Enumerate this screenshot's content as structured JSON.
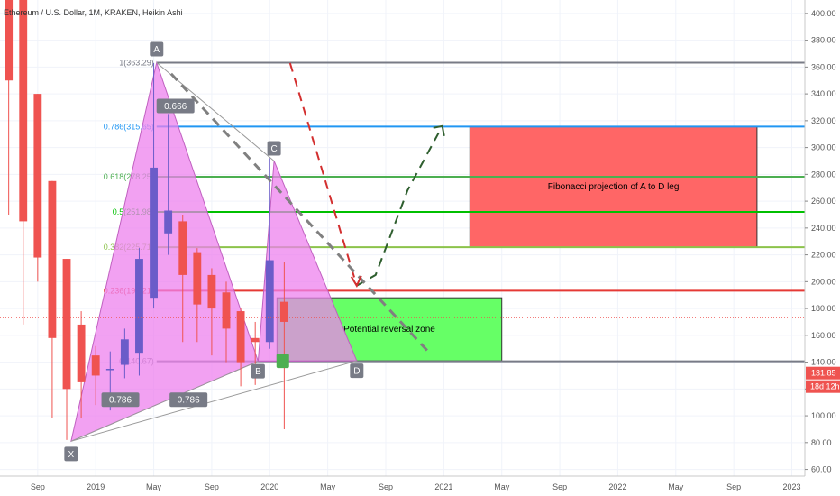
{
  "chart_data": {
    "type": "candlestick",
    "title": "Ethereum / U.S. Dollar, 1M, KRAKEN, Heikin Ashi",
    "colors": {
      "up": "#6b5cc9",
      "down": "#ef5350",
      "pattern_fill": "#ee82ee",
      "reversal_zone": "#66ff66",
      "projection_zone": "#ff6666"
    },
    "y_axis": {
      "ticks": [
        60,
        80,
        100,
        120,
        140,
        160,
        180,
        200,
        220,
        240,
        260,
        280,
        300,
        320,
        340,
        360,
        380,
        400
      ],
      "tick_labels": [
        "60.00",
        "80.00",
        "100.00",
        "120.00",
        "140.00",
        "160.00",
        "180.00",
        "200.00",
        "220.00",
        "240.00",
        "260.00",
        "280.00",
        "300.00",
        "320.00",
        "340.00",
        "360.00",
        "380.00",
        "400.00"
      ],
      "ylim": [
        55,
        410
      ],
      "current_price": "131.85",
      "countdown": "18d 12h"
    },
    "x_axis": {
      "ticks": [
        {
          "label": "Sep",
          "month": 8
        },
        {
          "label": "2019",
          "month": 12
        },
        {
          "label": "May",
          "month": 16
        },
        {
          "label": "Sep",
          "month": 20
        },
        {
          "label": "2020",
          "month": 24
        },
        {
          "label": "May",
          "month": 28
        },
        {
          "label": "Sep",
          "month": 32
        },
        {
          "label": "2021",
          "month": 36
        },
        {
          "label": "May",
          "month": 40
        },
        {
          "label": "Sep",
          "month": 44
        },
        {
          "label": "2022",
          "month": 48
        },
        {
          "label": "May",
          "month": 52
        },
        {
          "label": "Sep",
          "month": 56
        },
        {
          "label": "2023",
          "month": 60
        }
      ],
      "start_month": 5.4,
      "end_month": 60.9
    },
    "candles": [
      {
        "month": 6,
        "open": 420,
        "close": 350,
        "high": 420,
        "low": 250
      },
      {
        "month": 7,
        "open": 430,
        "close": 245,
        "high": 440,
        "low": 168
      },
      {
        "month": 8,
        "open": 340,
        "close": 218,
        "high": 340,
        "low": 200
      },
      {
        "month": 9,
        "open": 275,
        "close": 158,
        "high": 275,
        "low": 98
      },
      {
        "month": 10,
        "open": 217,
        "close": 120,
        "high": 217,
        "low": 82
      },
      {
        "month": 11,
        "open": 168,
        "close": 125,
        "high": 178,
        "low": 98
      },
      {
        "month": 12,
        "open": 145,
        "close": 130,
        "high": 152,
        "low": 108
      },
      {
        "month": 13,
        "open": 135,
        "close": 135,
        "high": 148,
        "low": 104
      },
      {
        "month": 14,
        "open": 138,
        "close": 157,
        "high": 165,
        "low": 128
      },
      {
        "month": 15,
        "open": 147,
        "close": 217,
        "high": 225,
        "low": 130
      },
      {
        "month": 16,
        "open": 188,
        "close": 285,
        "high": 363,
        "low": 180
      },
      {
        "month": 17,
        "open": 236,
        "close": 253,
        "high": 325,
        "low": 220
      },
      {
        "month": 18,
        "open": 245,
        "close": 205,
        "high": 250,
        "low": 155
      },
      {
        "month": 19,
        "open": 222,
        "close": 183,
        "high": 225,
        "low": 155
      },
      {
        "month": 20,
        "open": 205,
        "close": 180,
        "high": 210,
        "low": 145
      },
      {
        "month": 21,
        "open": 192,
        "close": 165,
        "high": 200,
        "low": 140
      },
      {
        "month": 22,
        "open": 178,
        "close": 140,
        "high": 180,
        "low": 122
      },
      {
        "month": 23,
        "open": 158,
        "close": 155,
        "high": 170,
        "low": 123
      },
      {
        "month": 24,
        "open": 155,
        "close": 216,
        "high": 292,
        "low": 150
      },
      {
        "month": 25,
        "open": 185,
        "close": 170,
        "high": 215,
        "low": 90
      }
    ],
    "harmonic_points": [
      {
        "label": "X",
        "month": 10.3,
        "price": 81
      },
      {
        "label": "A",
        "month": 16.2,
        "price": 363.29
      },
      {
        "label": "B",
        "month": 23.2,
        "price": 140.67
      },
      {
        "label": "C",
        "month": 24.3,
        "price": 290
      },
      {
        "label": "D",
        "month": 30,
        "price": 141
      }
    ],
    "ratio_labels": [
      {
        "text": "0.666",
        "month": 17.5,
        "price": 331
      },
      {
        "text": "0.786",
        "month": 13.7,
        "price": 112
      },
      {
        "text": "0.786",
        "month": 18.4,
        "price": 112
      }
    ],
    "fib_levels": [
      {
        "ratio": "1",
        "value": 363.29,
        "label": "1(363.29)",
        "color": "#787b86"
      },
      {
        "ratio": "0.786",
        "value": 315.65,
        "label": "0.786(315.65)",
        "color": "#2196f3"
      },
      {
        "ratio": "0.618",
        "value": 278.25,
        "label": "0.618(278.25)",
        "color": "#4caf50"
      },
      {
        "ratio": "0.5",
        "value": 251.98,
        "label": "0.5(251.98)",
        "color": "#00c000"
      },
      {
        "ratio": "0.382",
        "value": 225.71,
        "label": "0.382(225.71)",
        "color": "#8bc34a"
      },
      {
        "ratio": "0.236",
        "value": 193.21,
        "label": "0.236(193.21)",
        "color": "#e53935"
      },
      {
        "ratio": "0",
        "value": 140.67,
        "label": "0(140.67)",
        "color": "#787b86"
      }
    ],
    "zones": [
      {
        "name": "reversal",
        "text": "Potential reversal zone",
        "start_month": 24.5,
        "end_month": 40,
        "top": 188,
        "bottom": 141
      },
      {
        "name": "projection",
        "text": "Fibonacci projection of A to D leg",
        "start_month": 37.8,
        "end_month": 57.6,
        "top": 315.65,
        "bottom": 225.71
      }
    ],
    "projection_paths": [
      {
        "name": "red-dashed",
        "color": "#d32f2f",
        "points": [
          [
            25.4,
            363
          ],
          [
            30,
            197
          ]
        ]
      },
      {
        "name": "green-dashed",
        "color": "#2e5e2e",
        "points": [
          [
            30,
            197
          ],
          [
            31.3,
            205
          ],
          [
            33.5,
            268
          ],
          [
            35.9,
            316
          ]
        ]
      },
      {
        "name": "grey-dashed",
        "color": "#808080",
        "points": [
          [
            17.2,
            355
          ],
          [
            35,
            147
          ]
        ]
      }
    ]
  }
}
